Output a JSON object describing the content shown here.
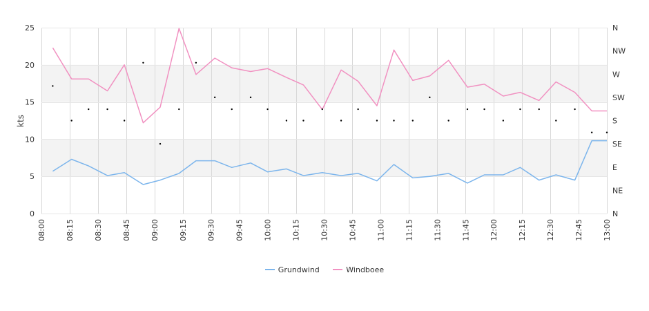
{
  "chart_data": {
    "type": "line",
    "ylabel": "kts",
    "y_ticks": [
      "0",
      "5",
      "10",
      "15",
      "20",
      "25"
    ],
    "ylim": [
      0,
      25
    ],
    "y2_ticks": [
      "N",
      "NE",
      "E",
      "SE",
      "S",
      "SW",
      "W",
      "NW",
      "N"
    ],
    "y2_range_degrees": [
      0,
      360
    ],
    "x_ticks": [
      "08:00",
      "08:15",
      "08:30",
      "08:45",
      "09:00",
      "09:15",
      "09:30",
      "09:45",
      "10:00",
      "10:15",
      "10:30",
      "10:45",
      "11:00",
      "11:15",
      "11:30",
      "11:45",
      "12:00",
      "12:15",
      "12:30",
      "12:45",
      "13:00"
    ],
    "x_tick_minutes": [
      480,
      495,
      510,
      525,
      540,
      555,
      570,
      585,
      600,
      615,
      630,
      645,
      660,
      675,
      690,
      705,
      720,
      735,
      750,
      765,
      780
    ],
    "xlim_minutes": [
      480,
      780
    ],
    "bands": [
      [
        5,
        10
      ],
      [
        15,
        20
      ]
    ],
    "x_minutes": [
      486,
      496,
      505,
      515,
      524,
      534,
      543,
      553,
      562,
      572,
      581,
      591,
      600,
      610,
      619,
      629,
      639,
      648,
      658,
      667,
      677,
      686,
      696,
      706,
      715,
      725,
      734,
      744,
      753,
      763,
      772,
      780
    ],
    "series": [
      {
        "name": "Grundwind",
        "color": "#7cb5ec",
        "values": [
          5.7,
          7.3,
          6.4,
          5.1,
          5.5,
          3.9,
          4.5,
          5.4,
          7.1,
          7.1,
          6.2,
          6.8,
          5.6,
          6.0,
          5.1,
          5.5,
          5.1,
          5.4,
          4.4,
          6.6,
          4.8,
          5.0,
          5.4,
          4.1,
          5.2,
          5.2,
          6.2,
          4.5,
          5.2,
          4.5,
          9.8,
          9.8
        ]
      },
      {
        "name": "Windboee",
        "color": "#f191c1",
        "values": [
          22.3,
          18.1,
          18.1,
          16.5,
          20.0,
          12.2,
          14.3,
          24.9,
          18.7,
          20.9,
          19.6,
          19.1,
          19.5,
          18.3,
          17.3,
          14.0,
          19.3,
          17.8,
          14.5,
          22.0,
          17.9,
          18.5,
          20.6,
          17.0,
          17.4,
          15.8,
          16.3,
          15.2,
          17.7,
          16.3,
          13.8,
          13.8
        ]
      }
    ],
    "direction_points": {
      "x_minutes": [
        486,
        496,
        505,
        515,
        524,
        534,
        543,
        553,
        562,
        572,
        581,
        591,
        600,
        610,
        619,
        629,
        639,
        648,
        658,
        667,
        677,
        686,
        696,
        706,
        715,
        725,
        734,
        744,
        753,
        763,
        772,
        780
      ],
      "degrees": [
        247,
        180,
        202,
        202,
        180,
        292,
        135,
        202,
        292,
        225,
        202,
        225,
        202,
        180,
        180,
        202,
        180,
        202,
        180,
        180,
        180,
        225,
        180,
        202,
        202,
        180,
        202,
        202,
        180,
        202,
        157,
        157
      ]
    }
  }
}
